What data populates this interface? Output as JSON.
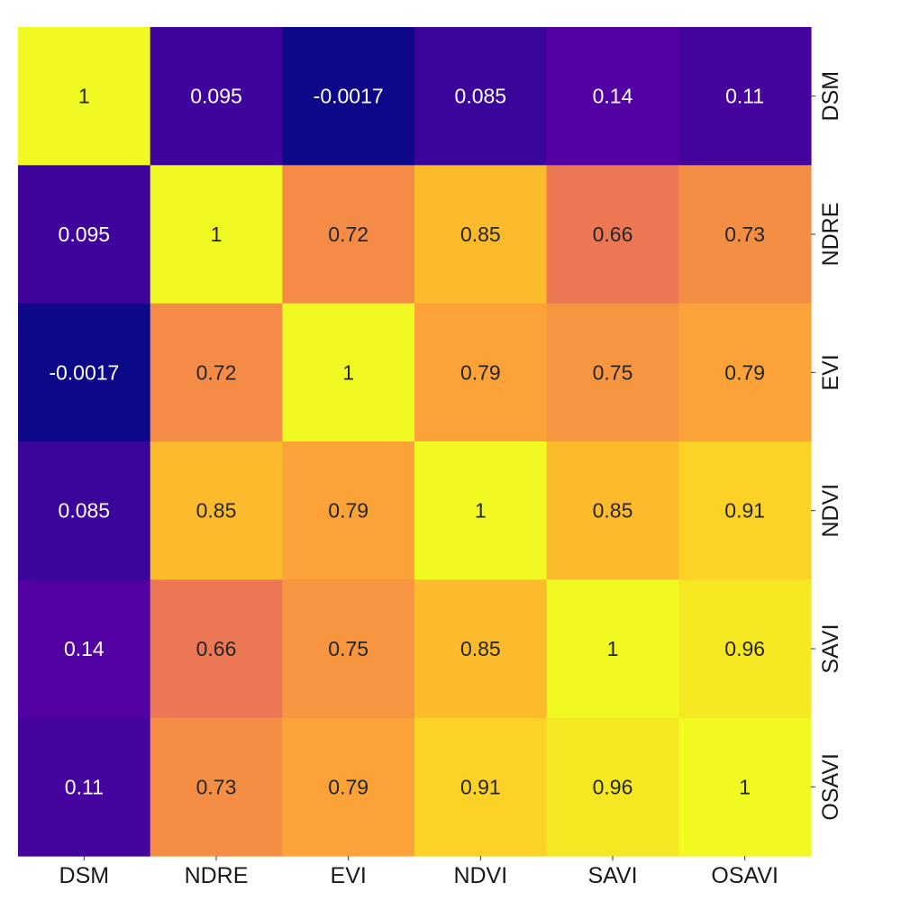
{
  "chart_data": {
    "type": "heatmap",
    "title": "",
    "xlabel": "",
    "ylabel": "",
    "x_categories": [
      "DSM",
      "NDRE",
      "EVI",
      "NDVI",
      "SAVI",
      "OSAVI"
    ],
    "y_categories": [
      "DSM",
      "NDRE",
      "EVI",
      "NDVI",
      "SAVI",
      "OSAVI"
    ],
    "values": [
      [
        1,
        0.095,
        -0.0017,
        0.085,
        0.14,
        0.11
      ],
      [
        0.095,
        1,
        0.72,
        0.85,
        0.66,
        0.73
      ],
      [
        -0.0017,
        0.72,
        1,
        0.79,
        0.75,
        0.79
      ],
      [
        0.085,
        0.85,
        0.79,
        1,
        0.85,
        0.91
      ],
      [
        0.14,
        0.66,
        0.75,
        0.85,
        1,
        0.96
      ],
      [
        0.11,
        0.73,
        0.79,
        0.91,
        0.96,
        1
      ]
    ],
    "cell_labels": [
      [
        "1",
        "0.095",
        "-0.0017",
        "0.085",
        "0.14",
        "0.11"
      ],
      [
        "0.095",
        "1",
        "0.72",
        "0.85",
        "0.66",
        "0.73"
      ],
      [
        "-0.0017",
        "0.72",
        "1",
        "0.79",
        "0.75",
        "0.79"
      ],
      [
        "0.085",
        "0.85",
        "0.79",
        "1",
        "0.85",
        "0.91"
      ],
      [
        "0.14",
        "0.66",
        "0.75",
        "0.85",
        "1",
        "0.96"
      ],
      [
        "0.11",
        "0.73",
        "0.79",
        "0.91",
        "0.96",
        "1"
      ]
    ],
    "colormap": "plasma",
    "y_tick_side": "right",
    "grid": false,
    "annotated": true
  }
}
